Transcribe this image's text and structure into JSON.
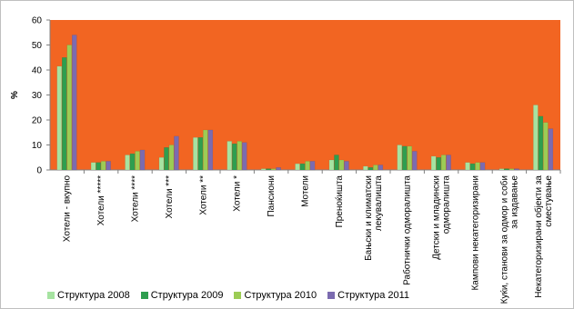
{
  "chart_data": {
    "type": "bar",
    "title": "",
    "xlabel": "",
    "ylabel": "%",
    "ylim": [
      0,
      60
    ],
    "yticks": [
      "0",
      "10",
      "20",
      "30",
      "40",
      "50",
      "60"
    ],
    "grid": false,
    "legend_position": "bottom",
    "plot_background": "#f26522",
    "categories": [
      "Хотели - вкупно",
      "Хотели *****",
      "Хотели ****",
      "Хотели ***",
      "Хотели **",
      "Хотели *",
      "Пансиони",
      "Мотели",
      "Преноќишта",
      "Бањски и климатски лекувалишта",
      "Работнички одморалишта",
      "Детски и младински одморалишта",
      "Кампови некатегоризирани",
      "Куќи, станови за одмор и соби за издавање",
      "Некатегоризирани објекти за сместување"
    ],
    "category_lines": [
      [
        "Хотели - вкупно"
      ],
      [
        "Хотели *****"
      ],
      [
        "Хотели ****"
      ],
      [
        "Хотели ***"
      ],
      [
        "Хотели **"
      ],
      [
        "Хотели *"
      ],
      [
        "Пансиони"
      ],
      [
        "Мотели"
      ],
      [
        "Преноќишта"
      ],
      [
        "Бањски и климатски",
        "лекувалишта"
      ],
      [
        "Работнички одморалишта"
      ],
      [
        "Детски и младински",
        "одморалишта"
      ],
      [
        "Кампови некатегоризирани"
      ],
      [
        "Куќи, станови за одмор и соби",
        "за издавање"
      ],
      [
        "Некатегоризирани објекти за",
        "сместување"
      ]
    ],
    "series": [
      {
        "name": "Структура 2008",
        "color": "#a6e3a1",
        "values": [
          41.5,
          3.0,
          6.0,
          5.0,
          13.0,
          11.5,
          0.5,
          2.5,
          4.0,
          1.5,
          10.0,
          5.5,
          3.0,
          0.5,
          26.0
        ]
      },
      {
        "name": "Структура 2009",
        "color": "#2e9e4f",
        "values": [
          45.0,
          3.0,
          6.5,
          9.0,
          13.0,
          10.5,
          0.5,
          2.5,
          6.0,
          1.0,
          9.5,
          5.0,
          2.5,
          0.5,
          21.5
        ]
      },
      {
        "name": "Структура 2010",
        "color": "#9ccc55",
        "values": [
          50.0,
          3.5,
          7.5,
          10.0,
          16.0,
          11.5,
          0.5,
          3.5,
          4.0,
          2.0,
          9.5,
          6.0,
          3.0,
          0.5,
          19.0
        ]
      },
      {
        "name": "Структура 2011",
        "color": "#7b6bb0",
        "values": [
          54.0,
          3.5,
          8.0,
          13.5,
          16.0,
          11.0,
          1.0,
          3.5,
          3.5,
          2.0,
          7.5,
          6.0,
          3.0,
          0.5,
          16.5
        ]
      }
    ]
  }
}
